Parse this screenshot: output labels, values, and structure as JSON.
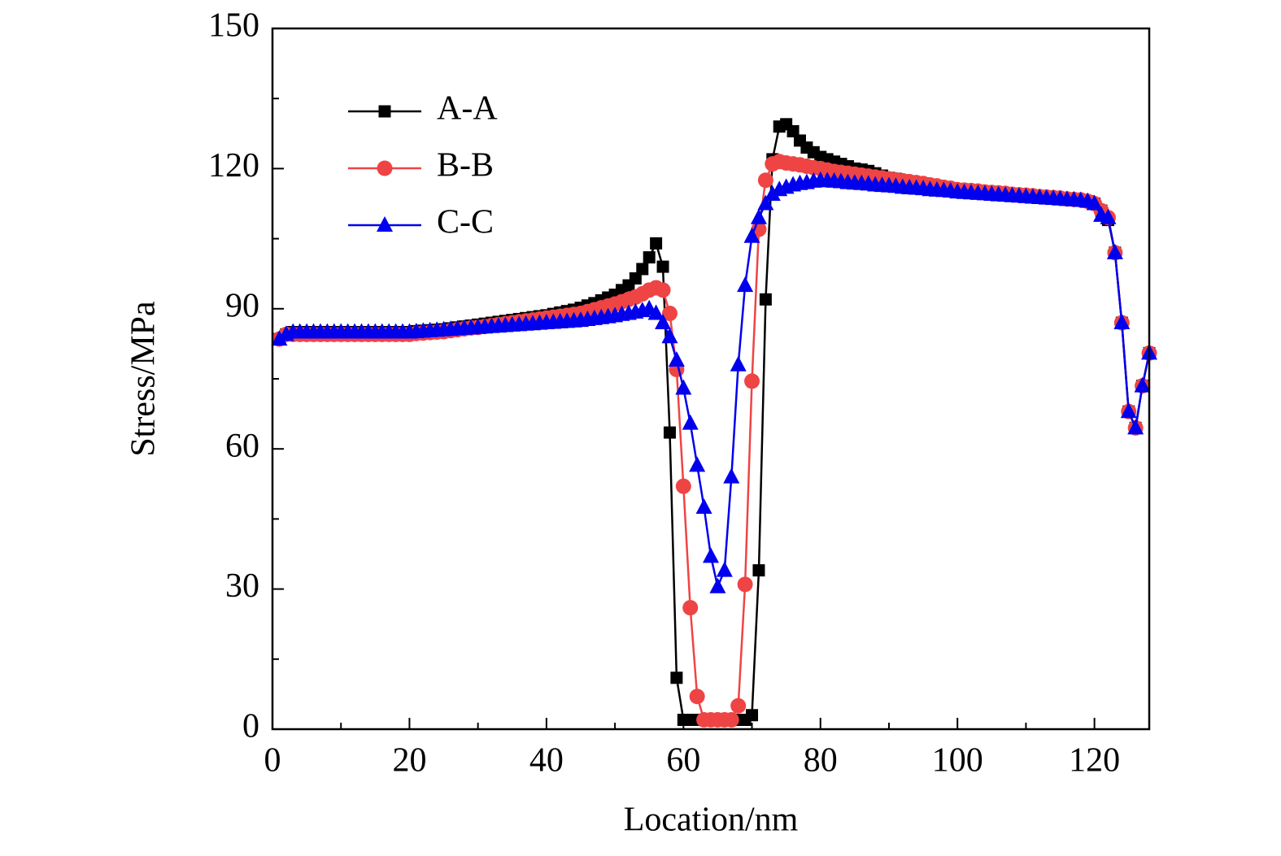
{
  "chart_data": {
    "type": "line",
    "x_label": "Location/nm",
    "y_label": "Stress/MPa",
    "x": [
      1,
      2,
      3,
      4,
      5,
      6,
      7,
      8,
      9,
      10,
      11,
      12,
      13,
      14,
      15,
      16,
      17,
      18,
      19,
      20,
      21,
      22,
      23,
      24,
      25,
      26,
      27,
      28,
      29,
      30,
      31,
      32,
      33,
      34,
      35,
      36,
      37,
      38,
      39,
      40,
      41,
      42,
      43,
      44,
      45,
      46,
      47,
      48,
      49,
      50,
      51,
      52,
      53,
      54,
      55,
      56,
      57,
      58,
      59,
      60,
      61,
      62,
      63,
      64,
      65,
      66,
      67,
      68,
      69,
      70,
      71,
      72,
      73,
      74,
      75,
      76,
      77,
      78,
      79,
      80,
      81,
      82,
      83,
      84,
      85,
      86,
      87,
      88,
      89,
      90,
      91,
      92,
      93,
      94,
      95,
      96,
      97,
      98,
      99,
      100,
      101,
      102,
      103,
      104,
      105,
      106,
      107,
      108,
      109,
      110,
      111,
      112,
      113,
      114,
      115,
      116,
      117,
      118,
      119,
      120,
      121,
      122,
      123,
      124,
      125,
      126,
      127,
      128
    ],
    "series": [
      {
        "name": "A-A",
        "color": "#000000",
        "marker": "square",
        "values": [
          83.5,
          84.5,
          85,
          85,
          85,
          85,
          85,
          85,
          85,
          85,
          85,
          85,
          85,
          85,
          85,
          85,
          85,
          85,
          85,
          85,
          85.2,
          85.3,
          85.4,
          85.5,
          85.6,
          85.8,
          86,
          86.2,
          86.4,
          86.6,
          86.8,
          87,
          87.2,
          87.4,
          87.6,
          87.8,
          88,
          88.2,
          88.4,
          88.6,
          88.9,
          89.2,
          89.5,
          89.8,
          90.2,
          90.7,
          91.2,
          91.8,
          92.4,
          93,
          94,
          95,
          96.5,
          98.5,
          101,
          104,
          99,
          63.5,
          11,
          2,
          2,
          2,
          2,
          2,
          2,
          2,
          2,
          2,
          2,
          3,
          34,
          92,
          122,
          129,
          129.5,
          128,
          126,
          124.5,
          123.5,
          122.5,
          122,
          121.5,
          121,
          120.5,
          120,
          119.8,
          119.5,
          119,
          118.5,
          118,
          117.8,
          117.5,
          117.2,
          117,
          116.8,
          116.5,
          116.3,
          116,
          115.8,
          115.5,
          115.4,
          115.3,
          115.2,
          115,
          114.9,
          114.8,
          114.7,
          114.5,
          114.4,
          114.3,
          114.2,
          114,
          113.9,
          113.8,
          113.7,
          113.5,
          113.4,
          113.3,
          113,
          112.5,
          111,
          109,
          102,
          87,
          68,
          64.5,
          73.5,
          80.5
        ]
      },
      {
        "name": "B-B",
        "color": "#ef4444",
        "marker": "circle",
        "values": [
          83.5,
          84.5,
          84.5,
          84.5,
          84.5,
          84.5,
          84.5,
          84.5,
          84.5,
          84.5,
          84.5,
          84.5,
          84.5,
          84.5,
          84.5,
          84.5,
          84.5,
          84.5,
          84.5,
          84.5,
          84.7,
          84.8,
          84.9,
          85,
          85.1,
          85.3,
          85.5,
          85.7,
          85.9,
          86,
          86.2,
          86.4,
          86.6,
          86.8,
          87,
          87.2,
          87.4,
          87.6,
          87.8,
          88,
          88.2,
          88.4,
          88.6,
          88.8,
          89,
          89.4,
          89.8,
          90.2,
          90.6,
          91,
          91.5,
          92,
          92.5,
          93.2,
          94,
          94.5,
          94,
          89,
          77,
          52,
          26,
          7,
          2,
          2,
          2,
          2,
          2,
          5,
          31,
          74.5,
          107,
          117.5,
          121,
          121.5,
          121.2,
          121,
          120.8,
          120.5,
          120.2,
          120,
          119.7,
          119.4,
          119.2,
          119,
          118.8,
          118.6,
          118.4,
          118.2,
          118,
          117.8,
          117.6,
          117.4,
          117.2,
          117,
          116.8,
          116.5,
          116.3,
          116,
          115.8,
          115.5,
          115.4,
          115.3,
          115.2,
          115,
          114.9,
          114.8,
          114.7,
          114.5,
          114.4,
          114.3,
          114.2,
          114,
          113.9,
          113.8,
          113.7,
          113.5,
          113.4,
          113.3,
          113,
          112.5,
          111,
          109.5,
          102,
          87,
          68,
          64.5,
          73.5,
          80.5
        ]
      },
      {
        "name": "C-C",
        "color": "#0000ee",
        "marker": "triangle",
        "values": [
          83.5,
          84.5,
          85,
          85,
          85,
          85,
          85,
          85,
          85,
          85,
          85,
          85,
          85,
          85,
          85,
          85,
          85,
          85,
          85,
          85,
          85.1,
          85.2,
          85.3,
          85.4,
          85.5,
          85.6,
          85.7,
          85.8,
          85.9,
          86,
          86.1,
          86.2,
          86.3,
          86.4,
          86.5,
          86.6,
          86.7,
          86.8,
          86.9,
          87,
          87.1,
          87.2,
          87.3,
          87.4,
          87.5,
          87.7,
          87.9,
          88.1,
          88.3,
          88.5,
          88.8,
          89,
          89.3,
          89.6,
          90,
          89,
          87,
          84,
          79,
          73,
          65.5,
          56.5,
          47.5,
          37,
          30.5,
          34,
          54,
          78,
          95,
          105.5,
          109.5,
          112.5,
          114.5,
          115.5,
          116,
          116.5,
          116.8,
          117,
          117.3,
          117.5,
          117.4,
          117.3,
          117.2,
          117,
          116.9,
          116.8,
          116.7,
          116.5,
          116.4,
          116.3,
          116.2,
          116,
          115.9,
          115.8,
          115.7,
          115.5,
          115.4,
          115.3,
          115.2,
          115,
          114.9,
          114.8,
          114.7,
          114.6,
          114.5,
          114.4,
          114.3,
          114.2,
          114.1,
          114,
          113.9,
          113.8,
          113.7,
          113.6,
          113.5,
          113.4,
          113.3,
          113.2,
          113,
          112.5,
          110,
          109.5,
          102,
          87,
          68,
          64.5,
          73.5,
          80.5
        ]
      }
    ],
    "xlim": [
      0,
      128
    ],
    "xticks": [
      0,
      20,
      40,
      60,
      80,
      100,
      120
    ],
    "xminorticks": [
      10,
      30,
      50,
      70,
      90,
      110
    ],
    "ylim": [
      0,
      150
    ],
    "yticks": [
      0,
      30,
      60,
      90,
      120,
      150
    ],
    "yminorticks": [
      15,
      45,
      75,
      105,
      135
    ],
    "legend": "upper left"
  }
}
